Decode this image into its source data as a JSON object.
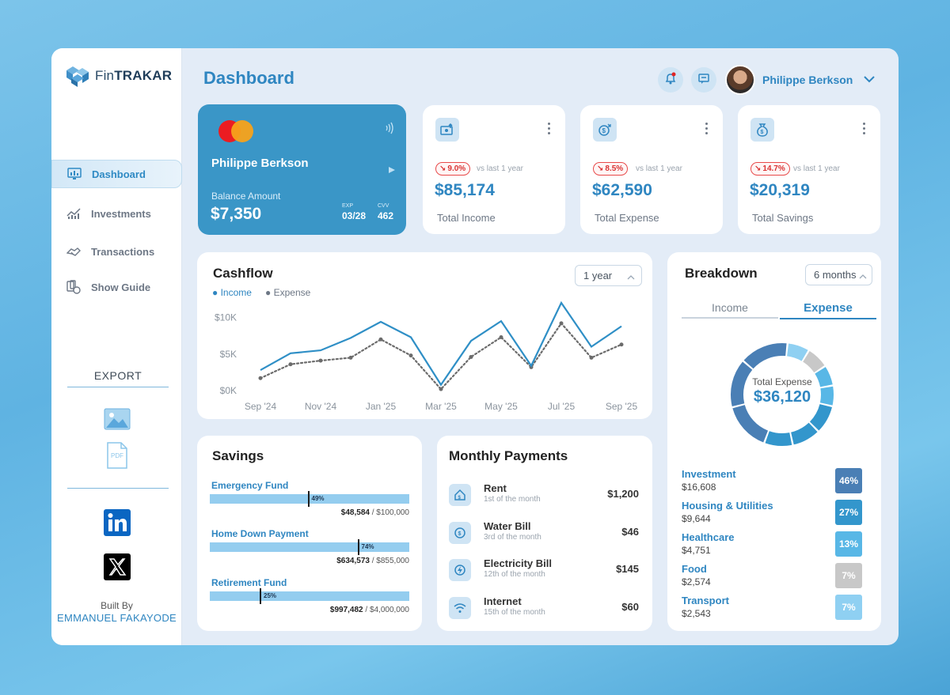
{
  "brand": {
    "prefix": "Fin",
    "bold": "TRAKAR"
  },
  "sidebar": {
    "items": [
      {
        "label": "Dashboard",
        "icon": "dashboard-icon",
        "active": true
      },
      {
        "label": "Investments",
        "icon": "chart-icon"
      },
      {
        "label": "Transactions",
        "icon": "handshake-icon"
      },
      {
        "label": "Show Guide",
        "icon": "guide-icon"
      }
    ],
    "export_title": "EXPORT",
    "export_pdf_label": "PDF",
    "built_by": "Built By",
    "author": "EMMANUEL FAKAYODE"
  },
  "header": {
    "title": "Dashboard",
    "user_name": "Philippe Berkson"
  },
  "card": {
    "holder": "Philippe Berkson",
    "balance_label": "Balance Amount",
    "balance": "$7,350",
    "exp_label": "EXP",
    "exp": "03/28",
    "cvv_label": "CVV",
    "cvv": "462"
  },
  "stats": [
    {
      "change": "9.0%",
      "vs": "vs last 1 year",
      "value": "$85,174",
      "label": "Total Income"
    },
    {
      "change": "8.5%",
      "vs": "vs last 1 year",
      "value": "$62,590",
      "label": "Total Expense"
    },
    {
      "change": "14.7%",
      "vs": "vs last 1 year",
      "value": "$20,319",
      "label": "Total Savings"
    }
  ],
  "cashflow": {
    "title": "Cashflow",
    "period": "1 year",
    "legend_income": "Income",
    "legend_expense": "Expense"
  },
  "chart_data": {
    "type": "line",
    "title": "Cashflow",
    "x": [
      "Sep '24",
      "Oct '24",
      "Nov '24",
      "Dec '24",
      "Jan '25",
      "Feb '25",
      "Mar '25",
      "Apr '25",
      "May '25",
      "Jun '25",
      "Jul '25",
      "Aug '25",
      "Sep '25"
    ],
    "x_tick_labels": [
      "Sep '24",
      "Nov '24",
      "Jan '25",
      "Mar '25",
      "May '25",
      "Jul '25",
      "Sep '25"
    ],
    "y_tick_labels": [
      "$10K",
      "$5K",
      "$0K"
    ],
    "ylim": [
      0,
      12000
    ],
    "series": [
      {
        "name": "Income",
        "color": "#2f8fc6",
        "style": "solid",
        "values": [
          2800,
          5100,
          5500,
          7200,
          9400,
          7300,
          800,
          6800,
          9500,
          3400,
          12000,
          6000,
          8800
        ]
      },
      {
        "name": "Expense",
        "color": "#6b6b6b",
        "style": "dotted",
        "values": [
          1700,
          3600,
          4100,
          4500,
          7000,
          4800,
          200,
          4600,
          7300,
          3200,
          9200,
          4500,
          6300
        ]
      }
    ]
  },
  "savings": {
    "title": "Savings",
    "funds": [
      {
        "name": "Emergency Fund",
        "pct": 49,
        "pct_label": "49%",
        "saved": "$48,584",
        "target": " / $100,000"
      },
      {
        "name": "Home Down Payment",
        "pct": 74,
        "pct_label": "74%",
        "saved": "$634,573",
        "target": " / $855,000"
      },
      {
        "name": "Retirement Fund",
        "pct": 25,
        "pct_label": "25%",
        "saved": "$997,482",
        "target": " / $4,000,000"
      }
    ]
  },
  "payments": {
    "title": "Monthly Payments",
    "rows": [
      {
        "name": "Rent",
        "due": "1st of the month",
        "amount": "$1,200",
        "icon": "house-icon"
      },
      {
        "name": "Water Bill",
        "due": "3rd of the month",
        "amount": "$46",
        "icon": "water-icon"
      },
      {
        "name": "Electricity Bill",
        "due": "12th of the month",
        "amount": "$145",
        "icon": "electricity-icon"
      },
      {
        "name": "Internet",
        "due": "15th of the month",
        "amount": "$60",
        "icon": "wifi-icon"
      }
    ]
  },
  "breakdown": {
    "title": "Breakdown",
    "period": "6 months",
    "tab_income": "Income",
    "tab_expense": "Expense",
    "donut_label": "Total Expense",
    "donut_value": "$36,120",
    "items": [
      {
        "name": "Investment",
        "value": "$16,608",
        "pct": 46,
        "pct_label": "46%",
        "color": "#4a7fb5"
      },
      {
        "name": "Housing & Utilities",
        "value": "$9,644",
        "pct": 27,
        "pct_label": "27%",
        "color": "#3396cc"
      },
      {
        "name": "Healthcare",
        "value": "$4,751",
        "pct": 13,
        "pct_label": "13%",
        "color": "#58b7e6"
      },
      {
        "name": "Food",
        "value": "$2,574",
        "pct": 7,
        "pct_label": "7%",
        "color": "#c8c8c8"
      },
      {
        "name": "Transport",
        "value": "$2,543",
        "pct": 7,
        "pct_label": "7%",
        "color": "#8fd0f2"
      }
    ]
  }
}
